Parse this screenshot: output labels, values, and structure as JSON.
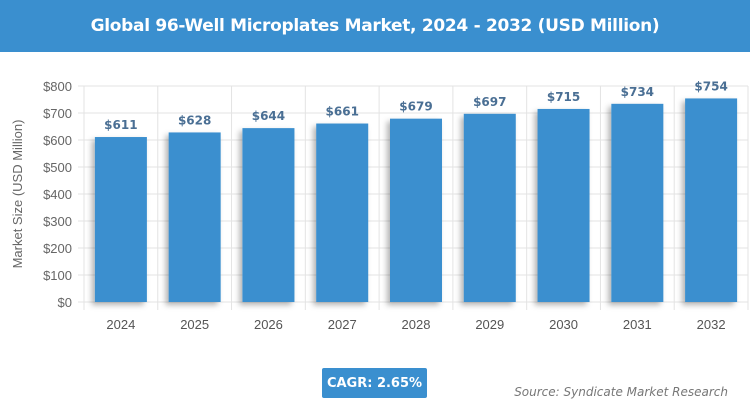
{
  "header": {
    "title": "Global 96-Well Microplates Market, 2024 - 2032 (USD Million)"
  },
  "chart_data": {
    "type": "bar",
    "title": "Global 96-Well Microplates Market, 2024 - 2032 (USD Million)",
    "categories": [
      "2024",
      "2025",
      "2026",
      "2027",
      "2028",
      "2029",
      "2030",
      "2031",
      "2032"
    ],
    "values": [
      611,
      628,
      644,
      661,
      679,
      697,
      715,
      734,
      754
    ],
    "data_labels": [
      "$611",
      "$628",
      "$644",
      "$661",
      "$679",
      "$697",
      "$715",
      "$734",
      "$754"
    ],
    "ylabel": "Market Size (USD Million)",
    "xlabel": "",
    "ylim": [
      0,
      800
    ],
    "yticks": [
      0,
      100,
      200,
      300,
      400,
      500,
      600,
      700,
      800
    ],
    "ytick_labels": [
      "$0",
      "$100",
      "$200",
      "$300",
      "$400",
      "$500",
      "$600",
      "$700",
      "$800"
    ],
    "grid": true,
    "bar_color": "#3a8fcf",
    "label_color": "#4a6f94"
  },
  "footer": {
    "cagr": "CAGR: 2.65%",
    "source": "Source: Syndicate Market Research"
  }
}
